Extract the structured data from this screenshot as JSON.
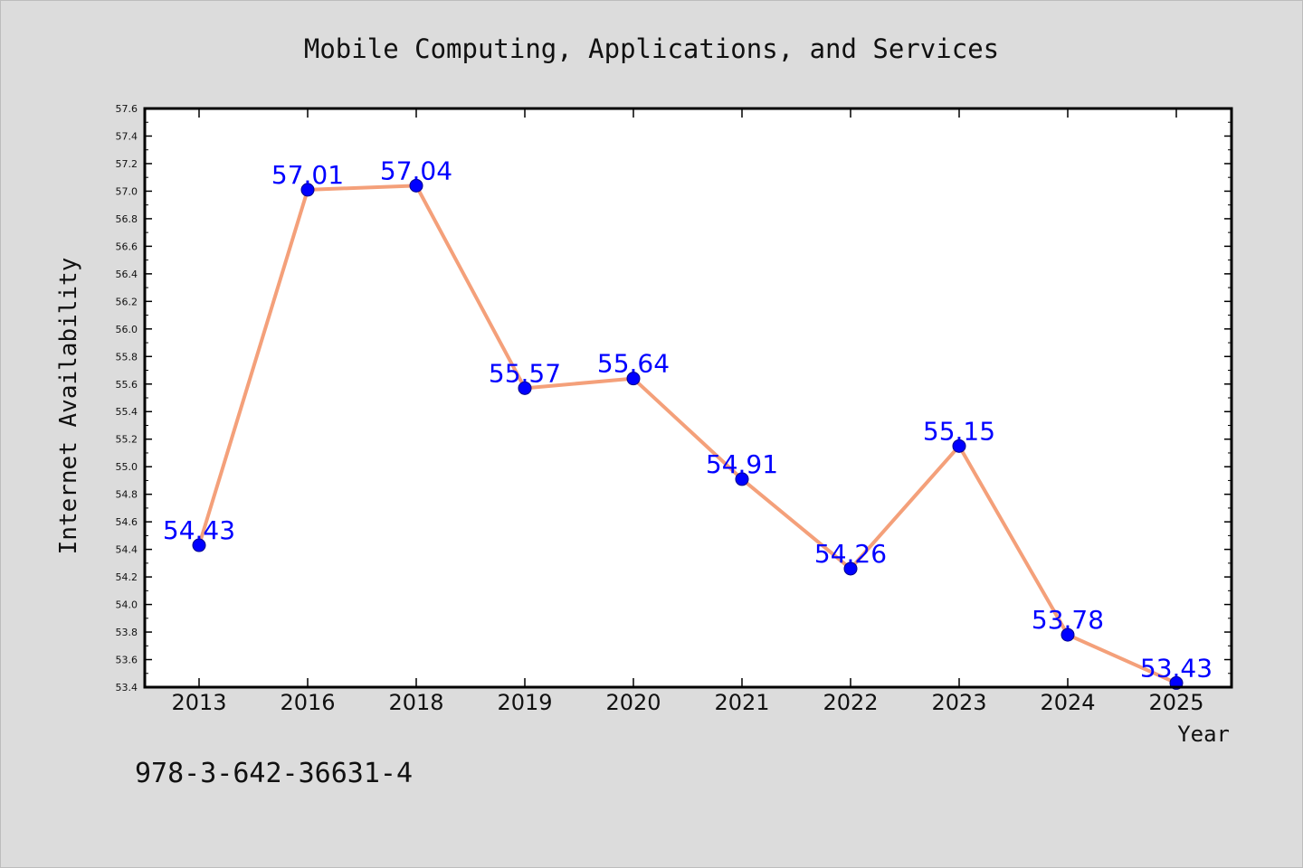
{
  "footer_code": "978-3-642-36631-4",
  "chart_data": {
    "type": "line",
    "title": "Mobile Computing, Applications, and Services",
    "xlabel": "Year",
    "ylabel": "Internet Availability",
    "categories": [
      "2013",
      "2016",
      "2018",
      "2019",
      "2020",
      "2021",
      "2022",
      "2023",
      "2024",
      "2025"
    ],
    "values": [
      54.43,
      57.01,
      57.04,
      55.57,
      55.64,
      54.91,
      54.26,
      55.15,
      53.78,
      53.43
    ],
    "data_labels": [
      "54.43",
      "57.01",
      "57.04",
      "55.57",
      "55.64",
      "54.91",
      "54.26",
      "55.15",
      "53.78",
      "53.43"
    ],
    "ylim": [
      53.4,
      57.6
    ],
    "yticks": [
      "53.4",
      "53.6",
      "53.8",
      "54.0",
      "54.2",
      "54.4",
      "54.6",
      "54.8",
      "55.0",
      "55.2",
      "55.4",
      "55.6",
      "55.8",
      "56.0",
      "56.2",
      "56.4",
      "56.6",
      "56.8",
      "57.0",
      "57.2",
      "57.4",
      "57.6"
    ],
    "grid": false,
    "legend": "none",
    "colors": {
      "line": "#f4a07a",
      "marker": "#0000ff",
      "marker_edge": "#00008b",
      "data_label": "#0000ff",
      "plot_background": "#ffffff",
      "figure_background": "#dcdcdc"
    }
  }
}
